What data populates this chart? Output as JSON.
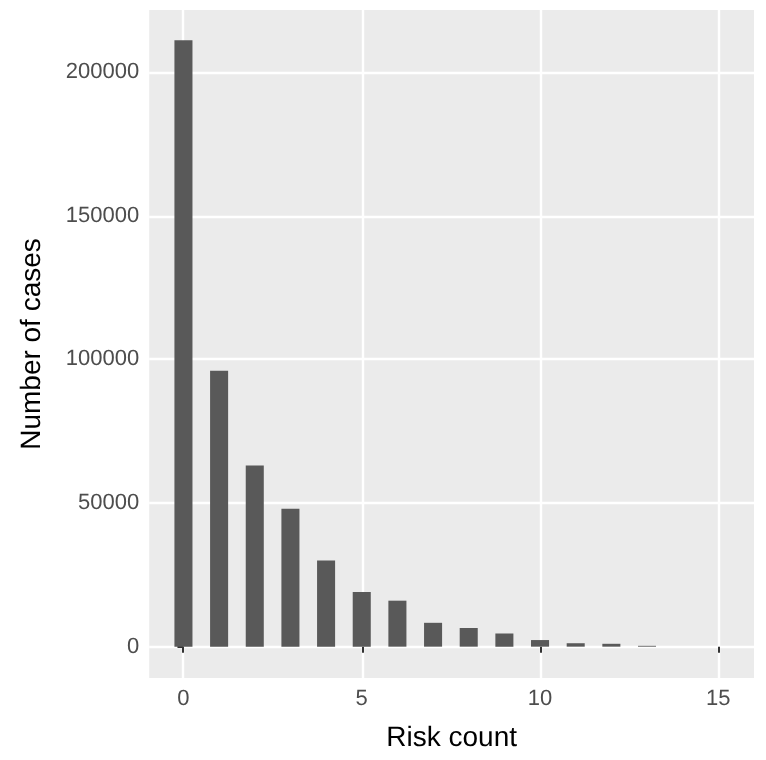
{
  "chart_data": {
    "type": "bar",
    "xlabel": "Risk count",
    "ylabel": "Number of cases",
    "x": [
      0,
      1,
      2,
      3,
      4,
      5,
      6,
      7,
      8,
      9,
      10,
      11,
      12,
      13
    ],
    "values": [
      211000,
      96000,
      63000,
      48000,
      30000,
      19000,
      16000,
      8300,
      6500,
      4600,
      2300,
      1200,
      1000,
      300
    ],
    "color": "#595959",
    "xlim": [
      -0.96,
      16.0
    ],
    "xticks": [
      0,
      5,
      10,
      15
    ],
    "ylim": [
      -10900,
      221500
    ],
    "yticks": [
      0,
      50000,
      100000,
      150000,
      200000
    ],
    "grid": true
  }
}
